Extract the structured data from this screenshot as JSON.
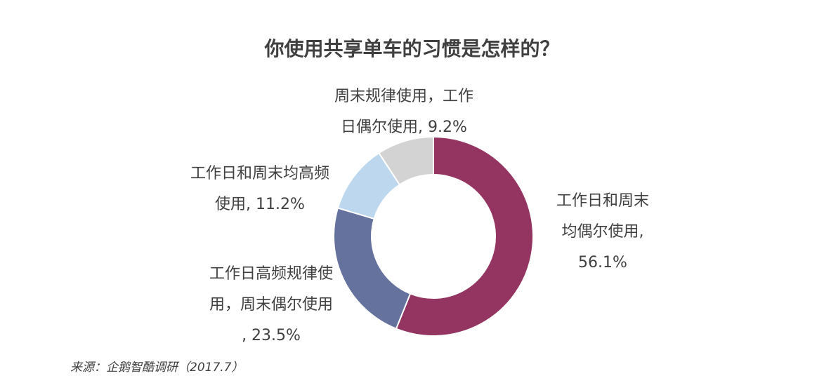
{
  "title": "你使用共享单车的习惯是怎样的？",
  "source": "来源：企鹅智酷调研（2017.7）",
  "chart_data": {
    "type": "donut",
    "start": "12 o'clock",
    "direction": "clockwise",
    "slices": [
      {
        "name": "工作日和周末均偶尔使用",
        "value": 56.1,
        "color": "#943460",
        "label_lines": [
          "工作日和周末",
          "均偶尔使用,",
          "56.1%"
        ]
      },
      {
        "name": "工作日高频规律使用，周末偶尔使用",
        "value": 23.5,
        "color": "#65729e",
        "label_lines": [
          "工作日高频规律使",
          "用，周末偶尔使用",
          ", 23.5%"
        ]
      },
      {
        "name": "工作日和周末均高频使用",
        "value": 11.2,
        "color": "#bdd7ee",
        "label_lines": [
          "工作日和周末均高频",
          "使用, 11.2%"
        ]
      },
      {
        "name": "周末规律使用，工作日偶尔使用",
        "value": 9.2,
        "color": "#d3d3d3",
        "label_lines": [
          "周末规律使用，工作",
          "日偶尔使用, 9.2%"
        ]
      }
    ]
  }
}
